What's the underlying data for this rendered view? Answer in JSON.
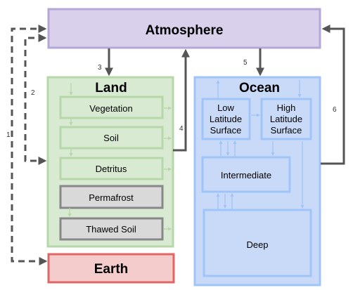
{
  "nodes": {
    "atmosphere": "Atmosphere",
    "land": "Land",
    "ocean": "Ocean",
    "earth": "Earth",
    "vegetation": "Vegetation",
    "soil": "Soil",
    "detritus": "Detritus",
    "permafrost": "Permafrost",
    "thawed_soil": "Thawed Soil",
    "low_latitude_surface": "Low\nLatitude\nSurface",
    "high_latitude_surface": "High\nLatitude\nSurface",
    "intermediate": "Intermediate",
    "deep": "Deep"
  },
  "flow_labels": {
    "f1": "1",
    "f2": "2",
    "f3": "3",
    "f4": "4",
    "f5": "5",
    "f6": "6"
  },
  "colors": {
    "atmosphere_fill": "#d9d0ec",
    "atmosphere_stroke": "#b4a7d6",
    "land_fill": "#d9ead3",
    "land_stroke": "#b6d7a8",
    "ocean_fill": "#c9daf8",
    "ocean_stroke": "#9fc5f8",
    "earth_fill": "#f4cccc",
    "earth_stroke": "#e06666",
    "gray_fill": "#d9d9d9",
    "gray_stroke": "#888888",
    "arrow": "#555555"
  }
}
